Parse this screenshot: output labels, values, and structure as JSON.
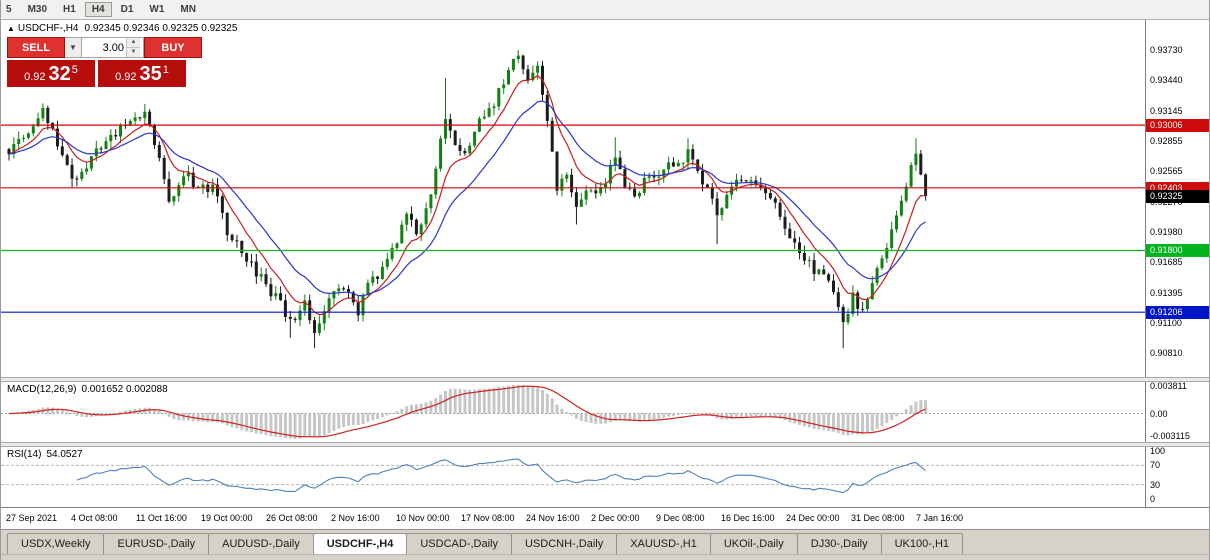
{
  "toolbar": {
    "timeframes": [
      "5",
      "M30",
      "H1",
      "H4",
      "D1",
      "W1",
      "MN"
    ],
    "active": "H4"
  },
  "symbol_info": {
    "collapse_icon": "▲",
    "title": "USDCHF-,H4",
    "ohlc": "0.92345 0.92346 0.92325 0.92325"
  },
  "trade_widget": {
    "sell_label": "SELL",
    "buy_label": "BUY",
    "volume": "3.00",
    "sell_price": {
      "prefix": "0.92",
      "big": "32",
      "sup": "5"
    },
    "buy_price": {
      "prefix": "0.92",
      "big": "35",
      "sup": "1"
    },
    "colors": {
      "button": "#e03131",
      "price_panel": "#b50c0c"
    }
  },
  "chart_data": {
    "type": "candlestick",
    "title": "USDCHF-,H4",
    "ylim": {
      "min": 0.9066,
      "max": 0.9394
    },
    "current_price": 0.92325,
    "price_axis": [
      "0.93730",
      "0.93440",
      "0.93145",
      "0.92855",
      "0.92565",
      "0.92270",
      "0.91980",
      "0.91685",
      "0.91395",
      "0.91100",
      "0.90810"
    ],
    "levels": [
      {
        "label": "0.93006",
        "value": 0.93006,
        "color": "#cf0a0a",
        "line": true
      },
      {
        "label": "0.92403",
        "value": 0.92403,
        "color": "#cf0a0a",
        "line": true
      },
      {
        "label": "0.92325",
        "value": 0.92325,
        "color": "#000000",
        "line": false,
        "current": true
      },
      {
        "label": "0.91800",
        "value": 0.918,
        "color": "#00b41e",
        "line": true
      },
      {
        "label": "0.91206",
        "value": 0.91206,
        "color": "#0014c8",
        "line": true
      }
    ],
    "candles": {
      "count": 190,
      "x0": 8,
      "pitch": 4.85,
      "bull_color": "#128112",
      "bear_color": "#1c1c1c",
      "wiggle": 0.00055,
      "wick": 0.00075,
      "anchors": [
        [
          0,
          0.9272
        ],
        [
          3,
          0.929
        ],
        [
          5,
          0.93
        ],
        [
          7,
          0.9313
        ],
        [
          9,
          0.9295
        ],
        [
          11,
          0.9268
        ],
        [
          13,
          0.9248
        ],
        [
          16,
          0.9262
        ],
        [
          20,
          0.9288
        ],
        [
          24,
          0.9298
        ],
        [
          28,
          0.931
        ],
        [
          30,
          0.9285
        ],
        [
          33,
          0.9225
        ],
        [
          36,
          0.9255
        ],
        [
          39,
          0.9238
        ],
        [
          42,
          0.924
        ],
        [
          45,
          0.92
        ],
        [
          48,
          0.9178
        ],
        [
          52,
          0.9152
        ],
        [
          55,
          0.9136
        ],
        [
          58,
          0.9112
        ],
        [
          61,
          0.9128
        ],
        [
          63,
          0.9098
        ],
        [
          66,
          0.913
        ],
        [
          69,
          0.9147
        ],
        [
          72,
          0.9122
        ],
        [
          74,
          0.915
        ],
        [
          77,
          0.9162
        ],
        [
          80,
          0.9188
        ],
        [
          82,
          0.922
        ],
        [
          84,
          0.9192
        ],
        [
          87,
          0.9238
        ],
        [
          90,
          0.9305
        ],
        [
          92,
          0.9282
        ],
        [
          94,
          0.9272
        ],
        [
          97,
          0.9302
        ],
        [
          100,
          0.9322
        ],
        [
          103,
          0.9352
        ],
        [
          105,
          0.9368
        ],
        [
          107,
          0.9345
        ],
        [
          109,
          0.9356
        ],
        [
          111,
          0.9302
        ],
        [
          113,
          0.9242
        ],
        [
          115,
          0.9254
        ],
        [
          117,
          0.9224
        ],
        [
          120,
          0.9237
        ],
        [
          123,
          0.9247
        ],
        [
          125,
          0.9272
        ],
        [
          127,
          0.9242
        ],
        [
          129,
          0.9227
        ],
        [
          131,
          0.925
        ],
        [
          134,
          0.9256
        ],
        [
          137,
          0.9262
        ],
        [
          140,
          0.9272
        ],
        [
          142,
          0.9256
        ],
        [
          144,
          0.9241
        ],
        [
          146,
          0.9212
        ],
        [
          148,
          0.9236
        ],
        [
          151,
          0.9252
        ],
        [
          154,
          0.9246
        ],
        [
          157,
          0.9231
        ],
        [
          160,
          0.9202
        ],
        [
          163,
          0.9177
        ],
        [
          166,
          0.9162
        ],
        [
          169,
          0.9147
        ],
        [
          172,
          0.9112
        ],
        [
          174,
          0.9136
        ],
        [
          176,
          0.9121
        ],
        [
          178,
          0.9152
        ],
        [
          181,
          0.9182
        ],
        [
          184,
          0.9232
        ],
        [
          187,
          0.9276
        ],
        [
          189,
          0.92325
        ]
      ],
      "spike_highs": [
        [
          7,
          0.932
        ],
        [
          28,
          0.9321
        ],
        [
          42,
          0.9249
        ],
        [
          90,
          0.9346
        ],
        [
          105,
          0.9373
        ],
        [
          109,
          0.9362
        ],
        [
          125,
          0.9289
        ],
        [
          140,
          0.9288
        ],
        [
          187,
          0.9288
        ]
      ],
      "spike_lows": [
        [
          13,
          0.9241
        ],
        [
          58,
          0.9096
        ],
        [
          63,
          0.9086
        ],
        [
          117,
          0.9205
        ],
        [
          146,
          0.9186
        ],
        [
          172,
          0.9086
        ]
      ]
    },
    "moving_averages": [
      {
        "period": 8,
        "color": "#c81e1e"
      },
      {
        "period": 18,
        "color": "#2c35c8"
      }
    ],
    "macd": {
      "label": "MACD(12,26,9)",
      "values_text": "0.001652 0.002088",
      "axis": [
        {
          "label": "0.003811",
          "v": 0.003811
        },
        {
          "label": "0.00",
          "v": 0
        },
        {
          "label": "-0.003115",
          "v": -0.003115
        }
      ],
      "max": 0.003811,
      "min": -0.003115,
      "hist_color": "#c6c6c6",
      "signal_color": "#d02020"
    },
    "rsi": {
      "label": "RSI(14)",
      "value_text": "54.0527",
      "axis": [
        {
          "label": "100",
          "v": 100
        },
        {
          "label": "70",
          "v": 70
        },
        {
          "label": "30",
          "v": 30
        },
        {
          "label": "0",
          "v": 0
        }
      ],
      "bands": [
        70,
        30
      ],
      "line_color": "#4f81bd"
    },
    "time_axis": [
      "27 Sep 2021",
      "4 Oct 08:00",
      "11 Oct 16:00",
      "19 Oct 00:00",
      "26 Oct 08:00",
      "2 Nov 16:00",
      "10 Nov 00:00",
      "17 Nov 08:00",
      "24 Nov 16:00",
      "2 Dec 00:00",
      "9 Dec 08:00",
      "16 Dec 16:00",
      "24 Dec 00:00",
      "31 Dec 08:00",
      "7 Jan 16:00"
    ]
  },
  "tabs": {
    "active_index": 3,
    "items": [
      "USDX,Weekly",
      "EURUSD-,Daily",
      "AUDUSD-,Daily",
      "USDCHF-,H4",
      "USDCAD-,Daily",
      "USDCNH-,Daily",
      "XAUUSD-,H1",
      "UKOil-,Daily",
      "DJ30-,Daily",
      "UK100-,H1"
    ]
  }
}
